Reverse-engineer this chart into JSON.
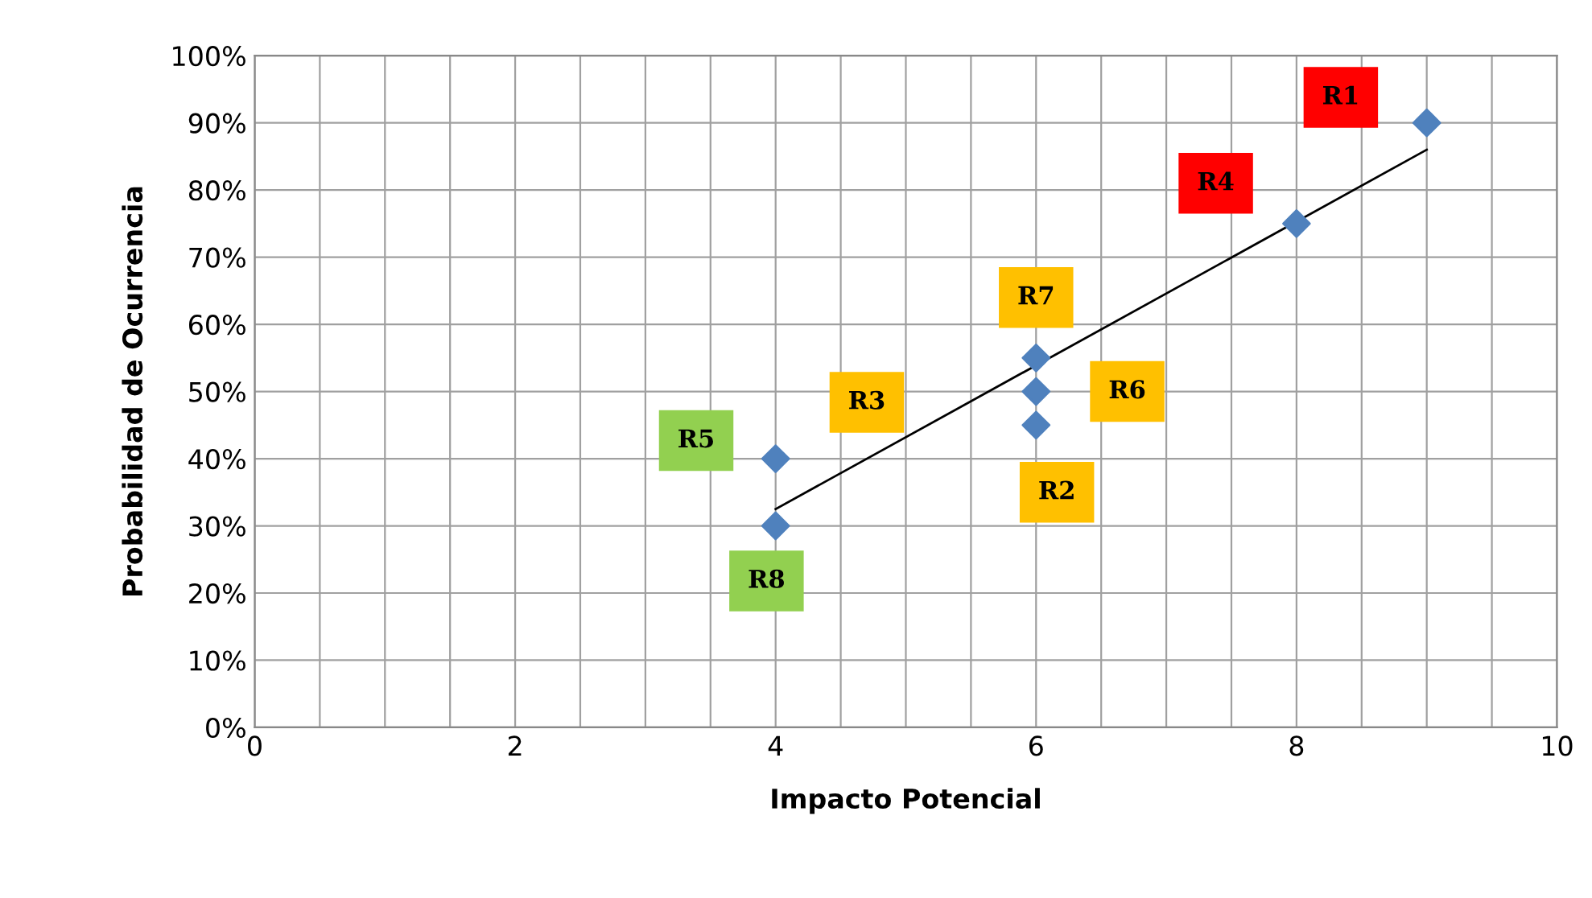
{
  "chart_data": {
    "type": "scatter",
    "xlabel": "Impacto Potencial",
    "ylabel": "Probabilidad de Ocurrencia",
    "series": [
      {
        "color": "#4f81bd",
        "x": [
          9,
          8,
          6,
          6,
          6,
          4,
          4
        ],
        "values": [
          90,
          75,
          55,
          50,
          45,
          40,
          30
        ],
        "marker": "diamond"
      },
      {
        "type": "line",
        "color": "#000000",
        "x": [
          4,
          9
        ],
        "values": [
          32.5,
          86
        ],
        "marker": "none"
      }
    ],
    "xlim": [
      0,
      10
    ],
    "ylim": [
      0,
      100
    ],
    "xticks": [
      0,
      {
        "value": 0.5,
        "label": null
      },
      {
        "value": 1,
        "label": null
      },
      {
        "value": 1.5,
        "label": null
      },
      2,
      {
        "value": 2.5,
        "label": null
      },
      {
        "value": 3,
        "label": null
      },
      {
        "value": 3.5,
        "label": null
      },
      4,
      {
        "value": 4.5,
        "label": null
      },
      {
        "value": 5,
        "label": null
      },
      {
        "value": 5.5,
        "label": null
      },
      6,
      {
        "value": 6.5,
        "label": null
      },
      {
        "value": 7,
        "label": null
      },
      {
        "value": 7.5,
        "label": null
      },
      8,
      {
        "value": 8.5,
        "label": null
      },
      {
        "value": 9,
        "label": null
      },
      {
        "value": 9.5,
        "label": null
      },
      10
    ],
    "yticks": [
      {
        "value": 0,
        "label": "0%"
      },
      {
        "value": 10,
        "label": "10%"
      },
      {
        "value": 20,
        "label": "20%"
      },
      {
        "value": 30,
        "label": "30%"
      },
      {
        "value": 40,
        "label": "40%"
      },
      {
        "value": 50,
        "label": "50%"
      },
      {
        "value": 60,
        "label": "60%"
      },
      {
        "value": 70,
        "label": "70%"
      },
      {
        "value": 80,
        "label": "80%"
      },
      {
        "value": 90,
        "label": "90%"
      },
      {
        "value": 100,
        "label": "100%"
      }
    ],
    "grid": true,
    "annotations": [
      {
        "text": "R1",
        "x": 9,
        "y": 90
      },
      {
        "text": "R4",
        "x": 8,
        "y": 75
      },
      {
        "text": "R7",
        "x": 6,
        "y": 55
      },
      "R3",
      {
        "text": "R6",
        "x": 6,
        "y": 50
      },
      {
        "text": "R5",
        "x": 4,
        "y": 40
      },
      {
        "text": "R2",
        "x": 6,
        "y": 45
      },
      {
        "text": "R8",
        "x": 4,
        "y": 30
      }
    ]
  }
}
